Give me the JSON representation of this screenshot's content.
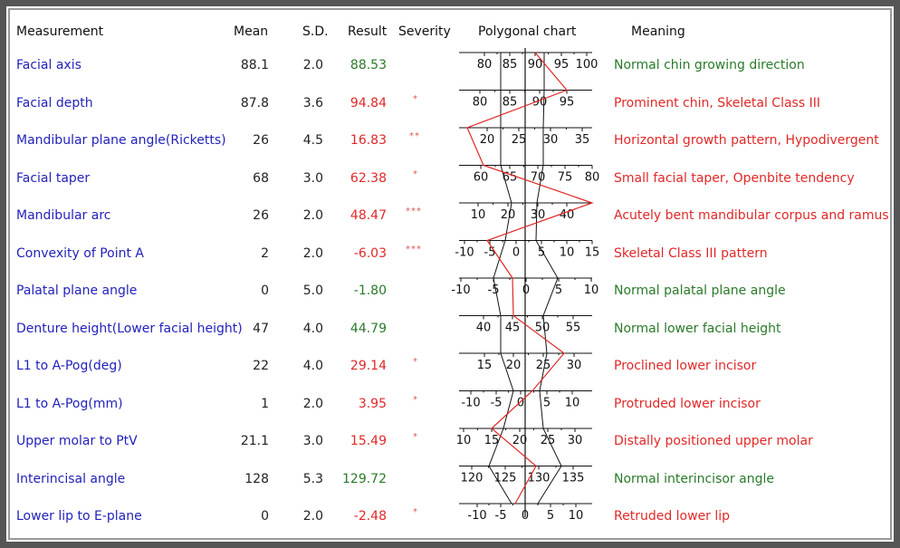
{
  "headers": {
    "measurement": "Measurement",
    "mean": "Mean",
    "sd": "S.D.",
    "result": "Result",
    "severity": "Severity",
    "chart": "Polygonal chart",
    "meaning": "Meaning"
  },
  "colors": {
    "name": "#2222bb",
    "normal": "#2a7a2a",
    "abnormal": "#e02828",
    "polygon_result": "#e02828",
    "polygon_norm": "#111111"
  },
  "rows": [
    {
      "name": "Facial axis",
      "mean": "88.1",
      "sd": "2.0",
      "result": "88.53",
      "severity": "",
      "meaning": "Normal chin growing direction",
      "status": "normal",
      "ticks": [
        "80",
        "85",
        "90",
        "95",
        "100"
      ]
    },
    {
      "name": "Facial depth",
      "mean": "87.8",
      "sd": "3.6",
      "result": "94.84",
      "severity": "*",
      "meaning": "Prominent chin, Skeletal Class III",
      "status": "abnormal",
      "ticks": [
        "80",
        "85",
        "90",
        "95"
      ]
    },
    {
      "name": "Mandibular plane angle(Ricketts)",
      "mean": "26",
      "sd": "4.5",
      "result": "16.83",
      "severity": "**",
      "meaning": "Horizontal growth pattern, Hypodivergent",
      "status": "abnormal",
      "ticks": [
        "20",
        "25",
        "30",
        "35"
      ]
    },
    {
      "name": "Facial taper",
      "mean": "68",
      "sd": "3.0",
      "result": "62.38",
      "severity": "*",
      "meaning": "Small facial taper, Openbite tendency",
      "status": "abnormal",
      "ticks": [
        "60",
        "65",
        "70",
        "75",
        "80"
      ]
    },
    {
      "name": "Mandibular arc",
      "mean": "26",
      "sd": "2.0",
      "result": "48.47",
      "severity": "***",
      "meaning": "Acutely bent mandibular corpus and ramus",
      "status": "abnormal",
      "ticks": [
        "10",
        "20",
        "30",
        "40"
      ]
    },
    {
      "name": "Convexity of Point A",
      "mean": "2",
      "sd": "2.0",
      "result": "-6.03",
      "severity": "***",
      "meaning": "Skeletal Class III pattern",
      "status": "abnormal",
      "ticks": [
        "-10",
        "-5",
        "0",
        "5",
        "10",
        "15"
      ]
    },
    {
      "name": "Palatal plane angle",
      "mean": "0",
      "sd": "5.0",
      "result": "-1.80",
      "severity": "",
      "meaning": "Normal palatal plane angle",
      "status": "normal",
      "ticks": [
        "-10",
        "-5",
        "0",
        "5",
        "10"
      ]
    },
    {
      "name": "Denture height(Lower facial height)",
      "mean": "47",
      "sd": "4.0",
      "result": "44.79",
      "severity": "",
      "meaning": "Normal lower facial height",
      "status": "normal",
      "ticks": [
        "40",
        "45",
        "50",
        "55"
      ]
    },
    {
      "name": "L1 to A-Pog(deg)",
      "mean": "22",
      "sd": "4.0",
      "result": "29.14",
      "severity": "*",
      "meaning": "Proclined lower incisor",
      "status": "abnormal",
      "ticks": [
        "15",
        "20",
        "25",
        "30"
      ]
    },
    {
      "name": "L1 to A-Pog(mm)",
      "mean": "1",
      "sd": "2.0",
      "result": "3.95",
      "severity": "*",
      "meaning": "Protruded lower incisor",
      "status": "abnormal",
      "ticks": [
        "-10",
        "-5",
        "0",
        "5",
        "10"
      ]
    },
    {
      "name": "Upper molar to PtV",
      "mean": "21.1",
      "sd": "3.0",
      "result": "15.49",
      "severity": "*",
      "meaning": "Distally positioned upper molar",
      "status": "abnormal",
      "ticks": [
        "10",
        "15",
        "20",
        "25",
        "30"
      ]
    },
    {
      "name": "Interincisal angle",
      "mean": "128",
      "sd": "5.3",
      "result": "129.72",
      "severity": "",
      "meaning": "Normal interincisor angle",
      "status": "normal",
      "ticks": [
        "120",
        "125",
        "130",
        "135"
      ]
    },
    {
      "name": "Lower lip to E-plane",
      "mean": "0",
      "sd": "2.0",
      "result": "-2.48",
      "severity": "*",
      "meaning": "Retruded lower lip",
      "status": "abnormal",
      "ticks": [
        "-10",
        "-5",
        "0",
        "5",
        "10"
      ]
    }
  ]
}
